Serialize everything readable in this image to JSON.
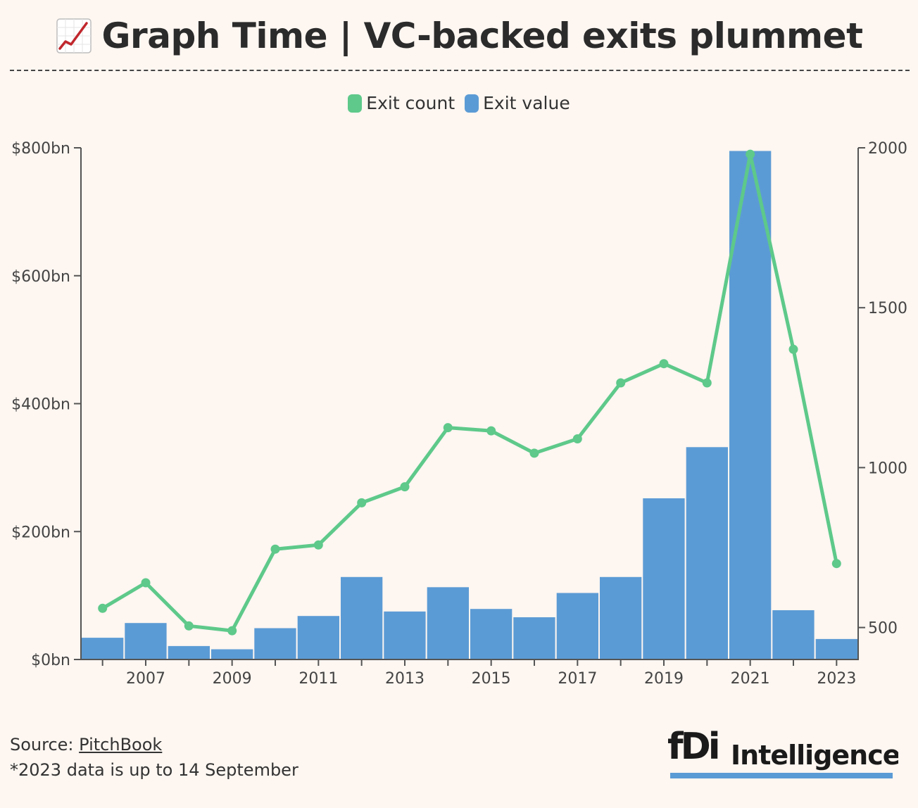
{
  "title": "Graph Time | VC-backed exits plummet",
  "icon": "chart-increasing-icon",
  "legend": [
    {
      "label": "Exit count",
      "color": "#5ec98a"
    },
    {
      "label": "Exit value",
      "color": "#5b9bd5"
    }
  ],
  "chart_data": {
    "type": "bar",
    "x": [
      2006,
      2007,
      2008,
      2009,
      2010,
      2011,
      2012,
      2013,
      2014,
      2015,
      2016,
      2017,
      2018,
      2019,
      2020,
      2021,
      2022,
      2023
    ],
    "series": [
      {
        "name": "Exit value",
        "type": "bar",
        "axis": "left",
        "color": "#5b9bd5",
        "values": [
          34,
          57,
          21,
          16,
          49,
          68,
          129,
          75,
          113,
          79,
          66,
          104,
          129,
          252,
          332,
          795,
          77,
          32
        ]
      },
      {
        "name": "Exit count",
        "type": "line",
        "axis": "right",
        "color": "#5ec98a",
        "values": [
          560,
          640,
          505,
          490,
          745,
          758,
          890,
          940,
          1125,
          1115,
          1045,
          1090,
          1265,
          1325,
          1265,
          1980,
          1370,
          700
        ]
      }
    ],
    "y_left": {
      "ylim": [
        0,
        800
      ],
      "ticks": [
        0,
        200,
        400,
        600,
        800
      ],
      "tick_labels": [
        "$0bn",
        "$200bn",
        "$400bn",
        "$600bn",
        "$800bn"
      ]
    },
    "y_right": {
      "ylim": [
        400,
        2000
      ],
      "ticks": [
        500,
        1000,
        1500,
        2000
      ],
      "tick_labels": [
        "500",
        "1000",
        "1500",
        "2000"
      ]
    },
    "x_tick_labels": [
      "2007",
      "2009",
      "2011",
      "2013",
      "2015",
      "2017",
      "2019",
      "2021",
      "2023"
    ],
    "legend_position": "top-center",
    "grid": false
  },
  "footer": {
    "source_label": "Source: ",
    "source_name": "PitchBook",
    "note": "*2023 data is up to 14 September"
  },
  "logo": {
    "brand": "fDi Intelligence",
    "accent": "#5b9bd5"
  }
}
